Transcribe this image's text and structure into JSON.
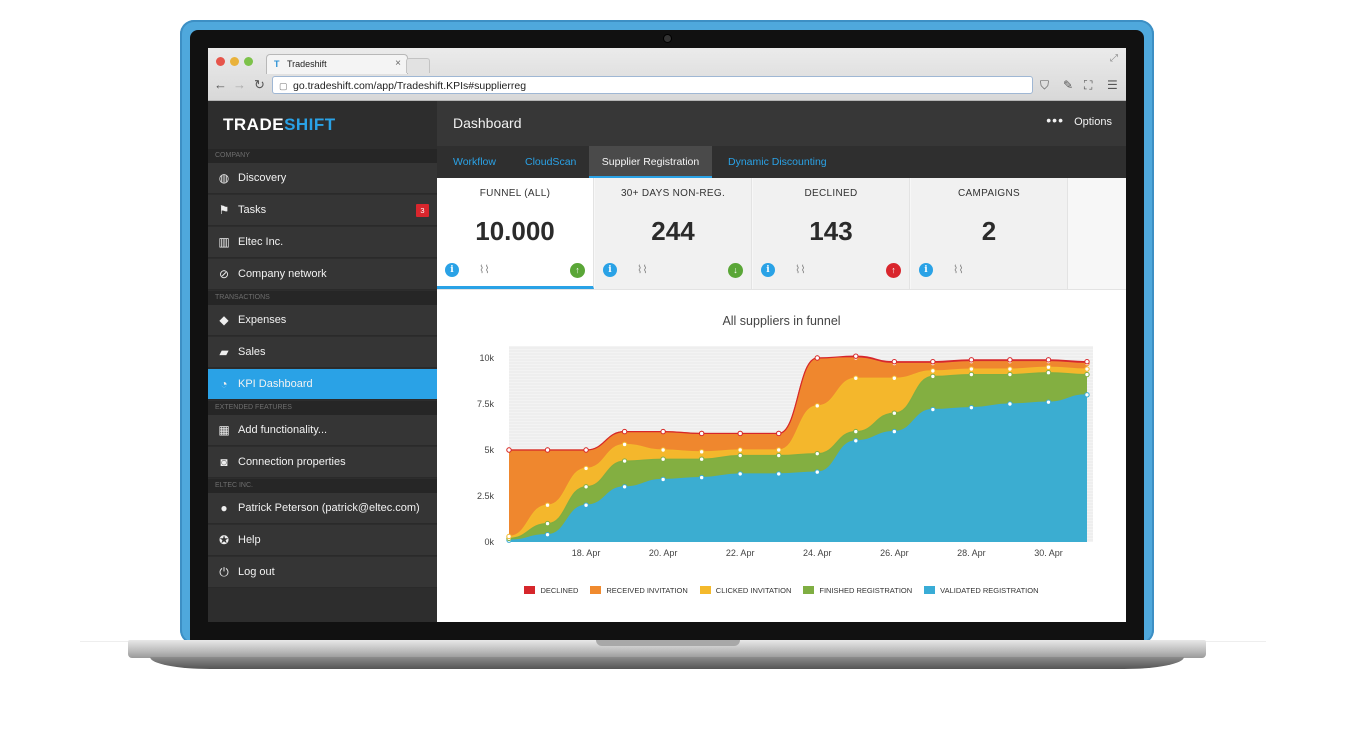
{
  "browser": {
    "tab_title": "Tradeshift",
    "tab_close": "×",
    "url": "go.tradeshift.com/app/Tradeshift.KPIs#supplierreg"
  },
  "app": {
    "logo": "TRADESHIFT",
    "logo_accent_color": "#2aa2e6"
  },
  "sidebar": {
    "sections": [
      {
        "title": "COMPANY"
      },
      {
        "title": "TRANSACTIONS"
      },
      {
        "title": "EXTENDED FEATURES"
      },
      {
        "title": "ELTEC INC."
      }
    ],
    "items": [
      {
        "label": "Discovery",
        "icon": "globe-icon"
      },
      {
        "label": "Tasks",
        "icon": "flag-icon",
        "badge": "3"
      },
      {
        "label": "Eltec Inc.",
        "icon": "building-icon"
      },
      {
        "label": "Company network",
        "icon": "link-icon"
      },
      {
        "label": "Expenses",
        "icon": "tag-icon"
      },
      {
        "label": "Sales",
        "icon": "truck-icon"
      },
      {
        "label": "KPI Dashboard",
        "icon": "pie-chart-icon",
        "active": true
      },
      {
        "label": "Add functionality...",
        "icon": "grid-icon"
      },
      {
        "label": "Connection properties",
        "icon": "plug-icon"
      },
      {
        "label": "Patrick Peterson (patrick@eltec.com)",
        "icon": "user-icon"
      },
      {
        "label": "Help",
        "icon": "lifebuoy-icon"
      },
      {
        "label": "Log out",
        "icon": "power-icon"
      }
    ]
  },
  "header": {
    "title": "Dashboard",
    "options_label": "Options",
    "options_icon": "more-dots-icon"
  },
  "tabs": [
    {
      "label": "Workflow"
    },
    {
      "label": "CloudScan"
    },
    {
      "label": "Supplier Registration",
      "active": true
    },
    {
      "label": "Dynamic Discounting"
    }
  ],
  "kpis": [
    {
      "label": "FUNNEL (ALL)",
      "value": "10.000",
      "trend": "up",
      "trend_color": "#5aa637"
    },
    {
      "label": "30+ DAYS NON-REG.",
      "value": "244",
      "trend": "down",
      "trend_color": "#5aa637"
    },
    {
      "label": "DECLINED",
      "value": "143",
      "trend": "up",
      "trend_color": "#d9262d"
    },
    {
      "label": "CAMPAIGNS",
      "value": "2",
      "trend": "none"
    }
  ],
  "chart_data": {
    "type": "area",
    "title": "All suppliers in funnel",
    "stacked": true,
    "x": [
      "16. Apr",
      "17. Apr",
      "18. Apr",
      "19. Apr",
      "20. Apr",
      "21. Apr",
      "22. Apr",
      "23. Apr",
      "24. Apr",
      "25. Apr",
      "26. Apr",
      "27. Apr",
      "28. Apr",
      "29. Apr",
      "30. Apr",
      "1. May"
    ],
    "x_tick_labels": [
      "18. Apr",
      "20. Apr",
      "22. Apr",
      "24. Apr",
      "26. Apr",
      "28. Apr",
      "30. Apr"
    ],
    "y_tick_labels": [
      "0k",
      "2.5k",
      "5k",
      "7.5k",
      "10k"
    ],
    "ylim": [
      0,
      10000
    ],
    "series": [
      {
        "name": "Validated registration",
        "color": "#39acd6",
        "values": [
          100,
          400,
          2000,
          3000,
          3400,
          3500,
          3700,
          3700,
          3800,
          5500,
          6000,
          7200,
          7300,
          7500,
          7600,
          8000
        ]
      },
      {
        "name": "Finished registration",
        "color": "#7fae42",
        "values": [
          100,
          600,
          1000,
          1400,
          1100,
          1000,
          1000,
          1000,
          1000,
          500,
          1000,
          1800,
          1800,
          1600,
          1600,
          1100
        ]
      },
      {
        "name": "Clicked invitation",
        "color": "#f4b92c",
        "values": [
          100,
          1000,
          1000,
          900,
          500,
          400,
          300,
          300,
          2600,
          2900,
          1900,
          300,
          300,
          300,
          300,
          300
        ]
      },
      {
        "name": "Received invitation",
        "color": "#f08a2e",
        "values": [
          4700,
          3000,
          1000,
          700,
          1000,
          1000,
          900,
          900,
          2600,
          1100,
          800,
          400,
          400,
          400,
          300,
          300
        ]
      },
      {
        "name": "Declined",
        "color": "#d6262b",
        "values": [
          0,
          0,
          0,
          0,
          0,
          0,
          0,
          0,
          0,
          100,
          100,
          100,
          100,
          100,
          100,
          100
        ]
      }
    ],
    "legend_position": "bottom",
    "grid": true
  }
}
